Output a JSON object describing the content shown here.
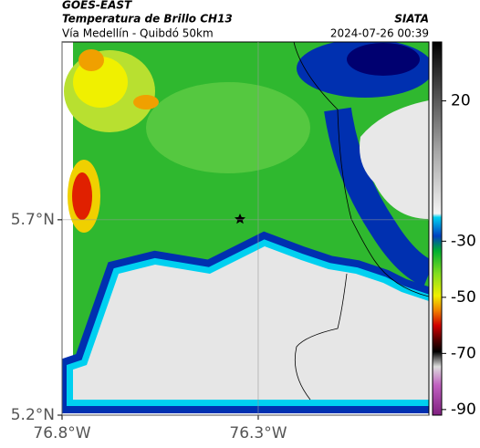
{
  "header": {
    "satellite": "GOES-EAST",
    "title": "Temperatura de Brillo CH13",
    "subtitle": "Vía Medellín - Quibdó 50km",
    "source": "SIATA",
    "datetime": "2024-07-26 00:39"
  },
  "map": {
    "xlim": [
      -76.8,
      -75.865
    ],
    "ylim": [
      5.2,
      6.155
    ],
    "xticks": [
      {
        "value": -76.8,
        "label": "76.8°W"
      },
      {
        "value": -76.3,
        "label": "76.3°W"
      }
    ],
    "yticks": [
      {
        "value": 5.2,
        "label": "5.2°N"
      },
      {
        "value": 5.7,
        "label": "5.7°N"
      }
    ],
    "grid": true
  },
  "colorbar": {
    "lim": [
      -92,
      41
    ],
    "ticks": [
      20,
      -30,
      -50,
      -70,
      -90
    ]
  }
}
